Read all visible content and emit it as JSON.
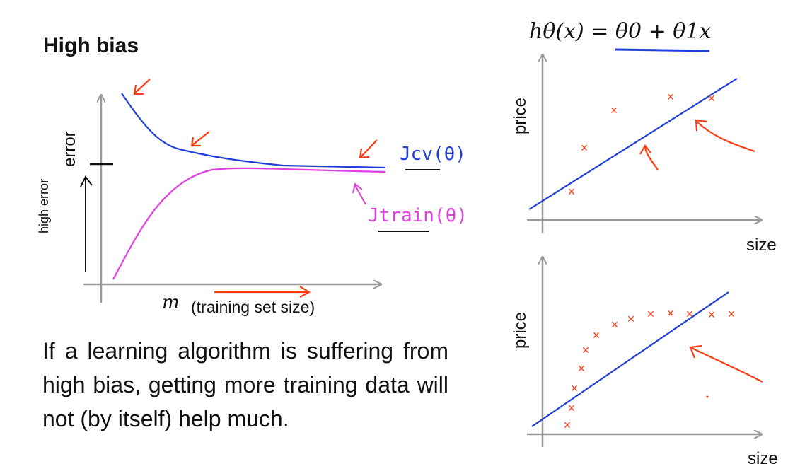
{
  "slide": {
    "title": "High bias",
    "paragraph": "If a learning algorithm is suffering from high bias, getting more training data will not (by itself) help much."
  },
  "learning_curve": {
    "ylabel": "error",
    "xlabel_var": "m",
    "xlabel_text": "(training set size)",
    "cv_label": "Jcv(θ)",
    "train_label": "Jtrain(θ)",
    "handwritten_note": "high error",
    "colors": {
      "cv": "#1f3fd8",
      "train": "#e040e0",
      "annotation": "#ff3a10"
    }
  },
  "top_plot": {
    "hypothesis": "hθ(x) = θ0 + θ1x",
    "xlabel": "size",
    "ylabel": "price"
  },
  "bottom_plot": {
    "xlabel": "size",
    "ylabel": "price"
  }
}
